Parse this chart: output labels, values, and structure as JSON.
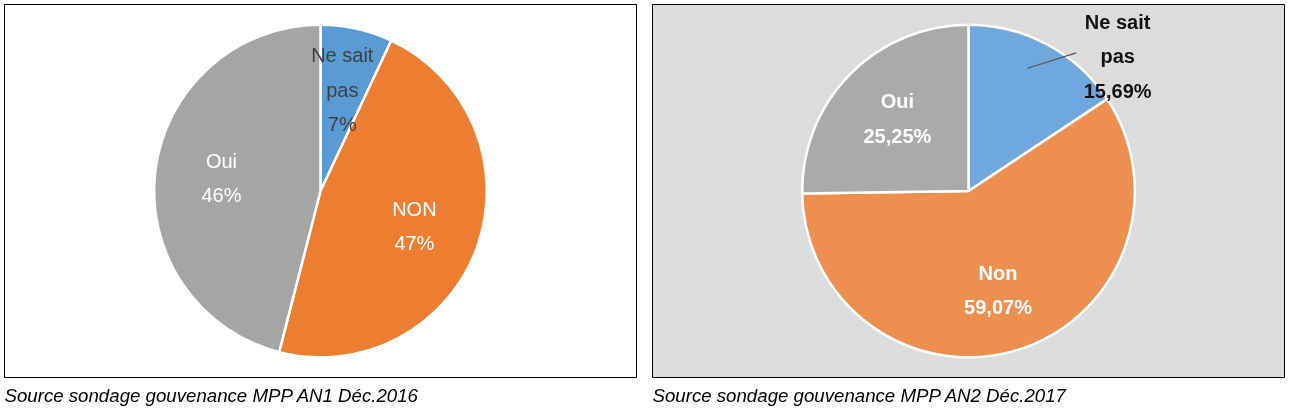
{
  "chart_data": [
    {
      "type": "pie",
      "categories": [
        "Ne sait pas",
        "NON",
        "Oui"
      ],
      "values": [
        7,
        47,
        46
      ],
      "colors": [
        "#5b9bd5",
        "#ed7d31",
        "#a5a5a5"
      ],
      "value_labels": [
        "7%",
        "47%",
        "46%"
      ],
      "annotations": [
        "Source sondage gouvenance MPP AN1  Déc.2016"
      ]
    },
    {
      "type": "pie",
      "categories": [
        "Ne sait pas",
        "Non",
        "Oui"
      ],
      "values": [
        15.69,
        59.07,
        25.25
      ],
      "colors": [
        "#6fa8dc",
        "#ec8f4f",
        "#aaaaaa"
      ],
      "value_labels": [
        "15,69%",
        "59,07%",
        "25,25%"
      ],
      "annotations": [
        "Source sondage gouvenance MPP AN2  Déc.2017"
      ]
    }
  ]
}
